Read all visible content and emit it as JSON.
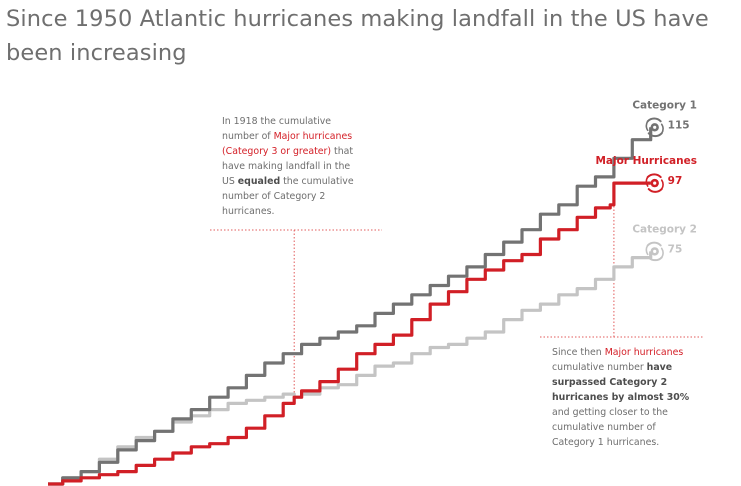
{
  "title": "Since 1950 Atlantic hurricanes making landfall in the US have been increasing",
  "annotations": {
    "left": {
      "line1": "In 1918 the cumulative",
      "line2": "number of ",
      "line2_red": "Major hurricanes",
      "line3_red": "(Category 3 or greater)",
      "line3": " that",
      "line4": "have making landfall in the",
      "line5_pre": "US ",
      "line5_bold": "equaled",
      "line5_post": " the cumulative",
      "line6": "number of Category 2",
      "line7": "hurricanes."
    },
    "right": {
      "line1_pre": "Since then ",
      "line1_red": "Major hurricanes",
      "line2_pre": "cumulative number ",
      "line2_bold": "have",
      "line3_bold": "surpassed Category 2",
      "line4_bold": "hurricanes by almost 30%",
      "line5": "and getting closer to the",
      "line6": "cumulative number of",
      "line7": "Category 1 hurricanes."
    }
  },
  "colors": {
    "category1": "#737373",
    "major": "#d11f26",
    "category2": "#c4c4c4",
    "annotation_line": "#e25b5b"
  },
  "chart_data": {
    "type": "line",
    "x_unit": "year",
    "xlim": [
      1851,
      2017
    ],
    "ylim": [
      0,
      118
    ],
    "grid": false,
    "series": [
      {
        "name": "Category 1",
        "key": "category1",
        "end_value": "115",
        "icon": "hurricane-icon",
        "points": [
          [
            1851,
            0
          ],
          [
            1855,
            2
          ],
          [
            1860,
            4
          ],
          [
            1865,
            7
          ],
          [
            1870,
            11
          ],
          [
            1875,
            14
          ],
          [
            1880,
            17
          ],
          [
            1885,
            21
          ],
          [
            1890,
            24
          ],
          [
            1895,
            28
          ],
          [
            1900,
            31
          ],
          [
            1905,
            35
          ],
          [
            1910,
            39
          ],
          [
            1915,
            42
          ],
          [
            1920,
            45
          ],
          [
            1925,
            47
          ],
          [
            1930,
            49
          ],
          [
            1935,
            51
          ],
          [
            1940,
            55
          ],
          [
            1945,
            58
          ],
          [
            1950,
            61
          ],
          [
            1955,
            64
          ],
          [
            1960,
            67
          ],
          [
            1965,
            70
          ],
          [
            1970,
            74
          ],
          [
            1975,
            78
          ],
          [
            1980,
            82
          ],
          [
            1985,
            87
          ],
          [
            1990,
            90
          ],
          [
            1995,
            96
          ],
          [
            2000,
            99
          ],
          [
            2005,
            105
          ],
          [
            2010,
            111
          ],
          [
            2015,
            115
          ]
        ]
      },
      {
        "name": "Major Hurricanes",
        "key": "major",
        "end_value": "97",
        "icon": "hurricane-icon",
        "points": [
          [
            1851,
            0
          ],
          [
            1855,
            1
          ],
          [
            1860,
            2
          ],
          [
            1865,
            3
          ],
          [
            1870,
            4
          ],
          [
            1875,
            6
          ],
          [
            1880,
            8
          ],
          [
            1885,
            10
          ],
          [
            1890,
            12
          ],
          [
            1895,
            13
          ],
          [
            1900,
            15
          ],
          [
            1905,
            18
          ],
          [
            1910,
            22
          ],
          [
            1915,
            26
          ],
          [
            1918,
            28
          ],
          [
            1920,
            30
          ],
          [
            1925,
            33
          ],
          [
            1930,
            37
          ],
          [
            1935,
            42
          ],
          [
            1940,
            45
          ],
          [
            1945,
            48
          ],
          [
            1950,
            53
          ],
          [
            1955,
            58
          ],
          [
            1960,
            62
          ],
          [
            1965,
            66
          ],
          [
            1970,
            69
          ],
          [
            1975,
            72
          ],
          [
            1980,
            74
          ],
          [
            1985,
            79
          ],
          [
            1990,
            82
          ],
          [
            1995,
            86
          ],
          [
            2000,
            89
          ],
          [
            2004,
            90
          ],
          [
            2005,
            97
          ],
          [
            2015,
            97
          ]
        ]
      },
      {
        "name": "Category 2",
        "key": "category2",
        "end_value": "75",
        "icon": "hurricane-icon",
        "points": [
          [
            1851,
            0
          ],
          [
            1855,
            2
          ],
          [
            1860,
            4
          ],
          [
            1865,
            8
          ],
          [
            1870,
            12
          ],
          [
            1875,
            15
          ],
          [
            1880,
            17
          ],
          [
            1885,
            20
          ],
          [
            1890,
            22
          ],
          [
            1895,
            24
          ],
          [
            1900,
            26
          ],
          [
            1905,
            27
          ],
          [
            1910,
            28
          ],
          [
            1915,
            29
          ],
          [
            1918,
            28
          ],
          [
            1920,
            29
          ],
          [
            1925,
            31
          ],
          [
            1930,
            32
          ],
          [
            1935,
            35
          ],
          [
            1940,
            38
          ],
          [
            1945,
            39
          ],
          [
            1950,
            42
          ],
          [
            1955,
            44
          ],
          [
            1960,
            45
          ],
          [
            1965,
            47
          ],
          [
            1970,
            49
          ],
          [
            1975,
            53
          ],
          [
            1980,
            56
          ],
          [
            1985,
            58
          ],
          [
            1990,
            61
          ],
          [
            1995,
            63
          ],
          [
            2000,
            66
          ],
          [
            2005,
            70
          ],
          [
            2010,
            73
          ],
          [
            2015,
            75
          ]
        ]
      }
    ],
    "annotation_marks": [
      {
        "x": 1918,
        "key": "left"
      },
      {
        "x": 2005,
        "key": "right"
      }
    ]
  }
}
